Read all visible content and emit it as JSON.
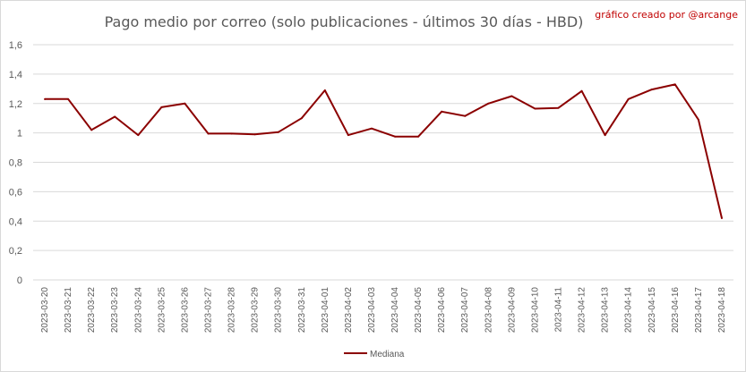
{
  "chart_data": {
    "type": "line",
    "title": "Pago medio por correo (solo publicaciones - últimos 30 días - HBD)",
    "annotation": "gráfico creado por @arcange",
    "xlabel": "",
    "ylabel": "",
    "ylim": [
      0,
      1.6
    ],
    "yticks": [
      "0",
      "0,2",
      "0,4",
      "0,6",
      "0,8",
      "1",
      "1,2",
      "1,4",
      "1,6"
    ],
    "ytick_values": [
      0,
      0.2,
      0.4,
      0.6,
      0.8,
      1.0,
      1.2,
      1.4,
      1.6
    ],
    "grid": true,
    "legend_position": "bottom",
    "categories": [
      "2023-03-20",
      "2023-03-21",
      "2023-03-22",
      "2023-03-23",
      "2023-03-24",
      "2023-03-25",
      "2023-03-26",
      "2023-03-27",
      "2023-03-28",
      "2023-03-29",
      "2023-03-30",
      "2023-03-31",
      "2023-04-01",
      "2023-04-02",
      "2023-04-03",
      "2023-04-04",
      "2023-04-05",
      "2023-04-06",
      "2023-04-07",
      "2023-04-08",
      "2023-04-09",
      "2023-04-10",
      "2023-04-11",
      "2023-04-12",
      "2023-04-13",
      "2023-04-14",
      "2023-04-15",
      "2023-04-16",
      "2023-04-17",
      "2023-04-18"
    ],
    "series": [
      {
        "name": "Mediana",
        "color": "#8b0000",
        "values": [
          1.23,
          1.23,
          1.02,
          1.11,
          0.985,
          1.175,
          1.2,
          0.995,
          0.995,
          0.99,
          1.005,
          1.1,
          1.29,
          0.985,
          1.03,
          0.975,
          0.975,
          1.145,
          1.115,
          1.2,
          1.25,
          1.165,
          1.17,
          1.285,
          0.985,
          1.23,
          1.295,
          1.33,
          1.09,
          0.42
        ]
      }
    ]
  },
  "colors": {
    "line": "#8b0000",
    "credit": "#c00000",
    "grid": "#d9d9d9",
    "text": "#595959"
  }
}
